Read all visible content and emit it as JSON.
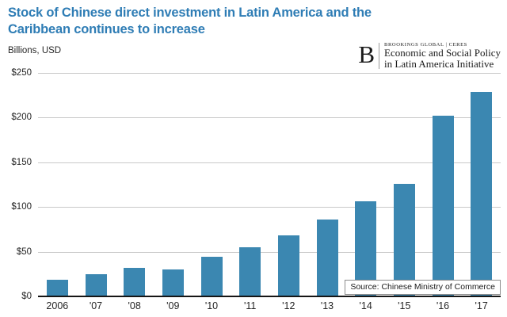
{
  "title_lines": [
    "Stock of Chinese direct investment in Latin America and the",
    "Caribbean continues to increase"
  ],
  "units_label": "Billions, USD",
  "logo": {
    "letter": "B",
    "eyebrow": "BROOKINGS GLOBAL | CERES",
    "line1": "Economic and Social Policy",
    "line2": "in Latin America Initiative"
  },
  "source_note": "Source: Chinese Ministry of Commerce",
  "colors": {
    "bar": "#3B87B1",
    "title": "#2F7DB5",
    "gridline": "#C9C9C9",
    "axis": "#161616",
    "text": "#262626"
  },
  "chart_data": {
    "type": "bar",
    "title": "Stock of Chinese direct investment in Latin America and the Caribbean continues to increase",
    "categories": [
      "2006",
      "'07",
      "'08",
      "'09",
      "'10",
      "'11",
      "'12",
      "'13",
      "'14",
      "'15",
      "'16",
      "'17"
    ],
    "values": [
      19,
      25,
      32,
      30,
      44,
      55,
      68,
      86,
      106,
      126,
      202,
      229
    ],
    "xlabel": "",
    "ylabel": "Billions, USD",
    "ylim": [
      0,
      250
    ],
    "yticks": [
      0,
      50,
      100,
      150,
      200,
      250
    ],
    "ytick_labels": [
      "$0",
      "$50",
      "$100",
      "$150",
      "$200",
      "$250"
    ],
    "grid": true,
    "legend": false,
    "source": "Source: Chinese Ministry of Commerce"
  }
}
